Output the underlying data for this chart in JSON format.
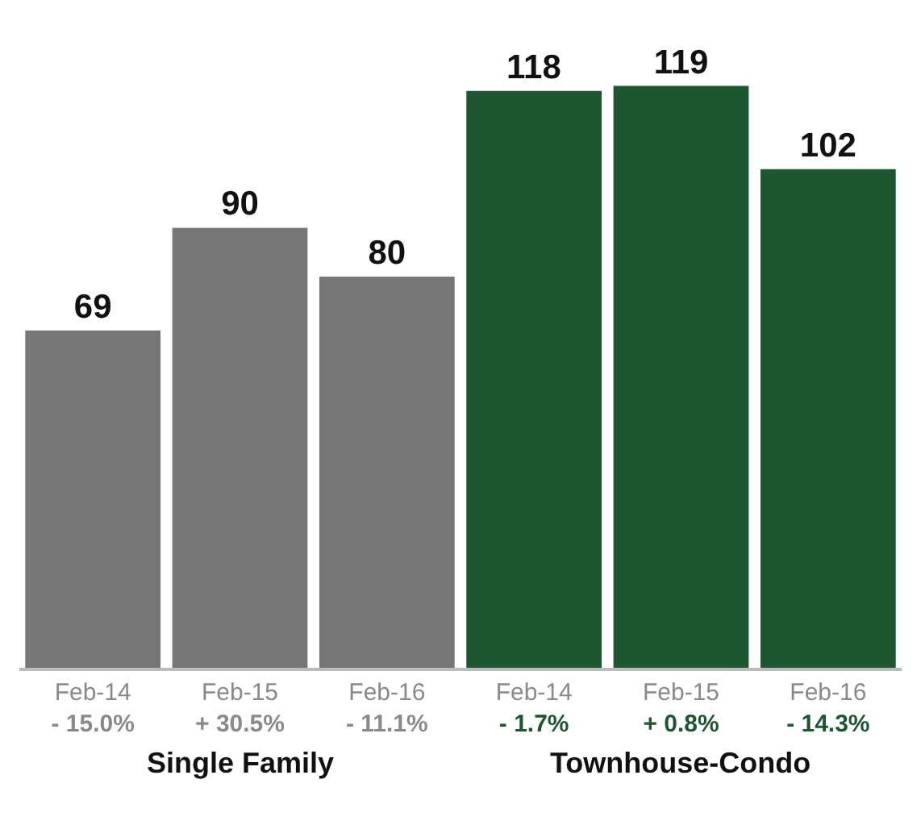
{
  "chart_data": {
    "type": "bar",
    "categories": [
      "Feb-14\n- 15.0%",
      "Feb-15\n+ 30.5%",
      "Feb-16\n- 11.1%",
      "Feb-14\n- 1.7%",
      "Feb-15\n+ 0.8%",
      "Feb-16\n- 14.3%"
    ],
    "series": [
      {
        "name": "Single Family",
        "color": "#767676",
        "values": [
          69,
          90,
          80,
          null,
          null,
          null
        ]
      },
      {
        "name": "Townhouse-Condo",
        "color": "#1e5631",
        "values": [
          null,
          null,
          null,
          118,
          119,
          102
        ]
      }
    ],
    "data_labels": true,
    "legend": false,
    "tick_labels": "x"
  }
}
